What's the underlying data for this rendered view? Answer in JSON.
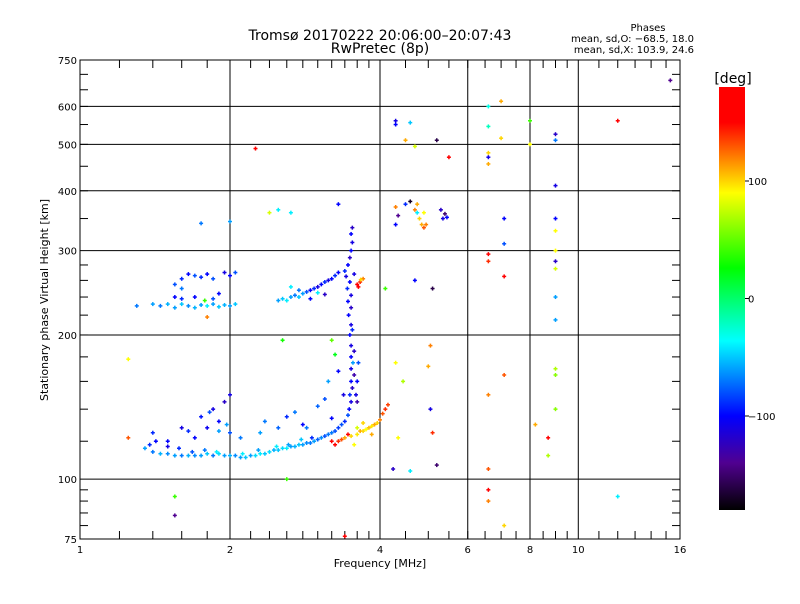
{
  "chart_data": {
    "type": "scatter",
    "title": "Tromsø 20170222 20:06:00–20:07:43",
    "subtitle": "RwPretec (8p)",
    "xlabel": "Frequency [MHz]",
    "ylabel": "Stationary phase Virtual Height [km]",
    "xscale": "log",
    "yscale": "log",
    "xlim": [
      1,
      16
    ],
    "ylim": [
      75,
      750
    ],
    "xticks": [
      1,
      2,
      4,
      6,
      8,
      10,
      16
    ],
    "yticks": [
      75,
      100,
      200,
      300,
      400,
      500,
      600,
      750
    ],
    "grid": true,
    "stats": {
      "title": "Phases",
      "line_o": "mean, sd,O: −68.5, 18.0",
      "line_x": "mean, sd,X: 103.9, 24.6"
    },
    "colorbar": {
      "label": "[deg]",
      "range": [
        -180,
        180
      ],
      "ticks": [
        100,
        0,
        -100
      ],
      "tick_labels": [
        "100",
        "0",
        "−100"
      ],
      "stops": [
        [
          -180,
          "#000000"
        ],
        [
          -140,
          "#500090"
        ],
        [
          -100,
          "#0000ff"
        ],
        [
          -36,
          "#00ffff"
        ],
        [
          26,
          "#00ff00"
        ],
        [
          90,
          "#ffff00"
        ],
        [
          150,
          "#ff0000"
        ],
        [
          180,
          "#ff0000"
        ]
      ]
    },
    "points_columns": [
      "frequency_mhz",
      "height_km",
      "phase_deg"
    ],
    "points": [
      [
        1.35,
        116,
        -60
      ],
      [
        1.38,
        118,
        -90
      ],
      [
        1.4,
        114,
        -70
      ],
      [
        1.45,
        113,
        -55
      ],
      [
        1.5,
        113,
        -65
      ],
      [
        1.55,
        112,
        -60
      ],
      [
        1.6,
        112,
        -70
      ],
      [
        1.65,
        112,
        -55
      ],
      [
        1.7,
        112,
        -65
      ],
      [
        1.75,
        112,
        -60
      ],
      [
        1.8,
        113,
        -50
      ],
      [
        1.85,
        112,
        -70
      ],
      [
        1.9,
        113,
        -45
      ],
      [
        1.95,
        112,
        -60
      ],
      [
        2.0,
        112,
        -55
      ],
      [
        2.05,
        112,
        -65
      ],
      [
        2.1,
        111,
        -60
      ],
      [
        2.15,
        111,
        -50
      ],
      [
        2.2,
        112,
        -60
      ],
      [
        2.25,
        112,
        -45
      ],
      [
        2.3,
        113,
        -40
      ],
      [
        2.35,
        113,
        -50
      ],
      [
        2.4,
        114,
        -45
      ],
      [
        2.45,
        115,
        -55
      ],
      [
        2.5,
        115,
        -50
      ],
      [
        2.55,
        116,
        -45
      ],
      [
        2.6,
        116,
        -40
      ],
      [
        2.65,
        117,
        -60
      ],
      [
        2.7,
        117,
        -55
      ],
      [
        2.75,
        118,
        -50
      ],
      [
        2.8,
        118,
        -60
      ],
      [
        2.85,
        119,
        -65
      ],
      [
        2.9,
        119,
        -70
      ],
      [
        2.95,
        120,
        -60
      ],
      [
        3.0,
        121,
        -75
      ],
      [
        3.05,
        122,
        -65
      ],
      [
        3.1,
        123,
        -80
      ],
      [
        3.15,
        124,
        -70
      ],
      [
        3.2,
        125,
        -70
      ],
      [
        3.25,
        126,
        -80
      ],
      [
        3.3,
        128,
        -85
      ],
      [
        3.35,
        130,
        -80
      ],
      [
        3.4,
        132,
        -90
      ],
      [
        3.45,
        136,
        -80
      ],
      [
        1.42,
        120,
        -100
      ],
      [
        1.5,
        117,
        -110
      ],
      [
        1.58,
        116,
        -90
      ],
      [
        1.68,
        114,
        -80
      ],
      [
        1.78,
        115,
        -70
      ],
      [
        1.88,
        114,
        -40
      ],
      [
        2.12,
        113,
        -40
      ],
      [
        2.28,
        115,
        -60
      ],
      [
        2.48,
        117,
        -40
      ],
      [
        2.62,
        118,
        -60
      ],
      [
        2.78,
        121,
        -50
      ],
      [
        2.92,
        122,
        -90
      ],
      [
        1.4,
        125,
        -90
      ],
      [
        1.5,
        120,
        -100
      ],
      [
        1.6,
        128,
        -110
      ],
      [
        1.65,
        126,
        -90
      ],
      [
        1.7,
        122,
        -100
      ],
      [
        1.75,
        135,
        -95
      ],
      [
        1.8,
        128,
        -105
      ],
      [
        1.82,
        138,
        -80
      ],
      [
        1.85,
        140,
        -110
      ],
      [
        1.9,
        132,
        -100
      ],
      [
        1.95,
        145,
        -120
      ],
      [
        2.0,
        125,
        -80
      ],
      [
        2.0,
        150,
        -110
      ],
      [
        1.9,
        126,
        -60
      ],
      [
        1.97,
        130,
        -60
      ],
      [
        2.1,
        122,
        -70
      ],
      [
        2.3,
        125,
        -60
      ],
      [
        2.35,
        132,
        -70
      ],
      [
        2.5,
        128,
        -75
      ],
      [
        2.6,
        135,
        -90
      ],
      [
        2.7,
        138,
        -70
      ],
      [
        2.8,
        130,
        -100
      ],
      [
        2.85,
        128,
        -70
      ],
      [
        3.0,
        142,
        -75
      ],
      [
        3.1,
        147,
        -80
      ],
      [
        3.2,
        134,
        -100
      ],
      [
        3.15,
        160,
        -60
      ],
      [
        3.3,
        168,
        -100
      ],
      [
        3.25,
        182,
        20
      ],
      [
        3.38,
        150,
        -110
      ],
      [
        3.47,
        140,
        -100
      ],
      [
        3.5,
        145,
        -110
      ],
      [
        3.48,
        150,
        -90
      ],
      [
        3.52,
        155,
        -120
      ],
      [
        3.5,
        160,
        -100
      ],
      [
        3.55,
        165,
        -130
      ],
      [
        3.5,
        170,
        -110
      ],
      [
        3.53,
        175,
        -60
      ],
      [
        3.5,
        180,
        -100
      ],
      [
        3.55,
        185,
        -120
      ],
      [
        3.5,
        190,
        -110
      ],
      [
        3.48,
        200,
        -100
      ],
      [
        3.52,
        205,
        -90
      ],
      [
        3.5,
        210,
        -110
      ],
      [
        3.46,
        220,
        -100
      ],
      [
        3.5,
        228,
        -120
      ],
      [
        3.45,
        235,
        -100
      ],
      [
        3.5,
        242,
        -110
      ],
      [
        3.44,
        250,
        -90
      ],
      [
        3.48,
        258,
        -100
      ],
      [
        3.42,
        265,
        -110
      ],
      [
        3.4,
        272,
        -90
      ],
      [
        3.45,
        280,
        -100
      ],
      [
        3.48,
        290,
        -120
      ],
      [
        3.5,
        300,
        -100
      ],
      [
        3.52,
        312,
        -110
      ],
      [
        3.5,
        325,
        -100
      ],
      [
        3.52,
        335,
        -120
      ],
      [
        3.6,
        160,
        -100
      ],
      [
        3.62,
        175,
        -80
      ],
      [
        3.58,
        150,
        -110
      ],
      [
        3.6,
        145,
        -130
      ],
      [
        1.4,
        232,
        -60
      ],
      [
        1.45,
        230,
        -70
      ],
      [
        1.5,
        232,
        -55
      ],
      [
        1.55,
        228,
        -60
      ],
      [
        1.6,
        232,
        -50
      ],
      [
        1.65,
        230,
        -65
      ],
      [
        1.7,
        228,
        -55
      ],
      [
        1.75,
        231,
        -60
      ],
      [
        1.8,
        230,
        -40
      ],
      [
        1.85,
        232,
        -60
      ],
      [
        1.9,
        229,
        -50
      ],
      [
        1.95,
        231,
        -55
      ],
      [
        2.0,
        230,
        -60
      ],
      [
        2.05,
        232,
        -50
      ],
      [
        1.55,
        240,
        -100
      ],
      [
        1.6,
        238,
        -90
      ],
      [
        1.7,
        240,
        -100
      ],
      [
        1.78,
        236,
        40
      ],
      [
        1.85,
        238,
        -80
      ],
      [
        1.9,
        244,
        -100
      ],
      [
        1.6,
        262,
        -90
      ],
      [
        1.65,
        268,
        -100
      ],
      [
        1.7,
        266,
        -80
      ],
      [
        1.75,
        264,
        -90
      ],
      [
        1.8,
        268,
        -100
      ],
      [
        1.85,
        262,
        -80
      ],
      [
        1.95,
        270,
        -110
      ],
      [
        2.0,
        266,
        -100
      ],
      [
        2.05,
        270,
        -80
      ],
      [
        1.55,
        255,
        -80
      ],
      [
        1.6,
        250,
        -70
      ],
      [
        2.5,
        236,
        -60
      ],
      [
        2.55,
        238,
        -50
      ],
      [
        2.6,
        236,
        -40
      ],
      [
        2.65,
        240,
        -60
      ],
      [
        2.7,
        242,
        -70
      ],
      [
        2.75,
        240,
        -50
      ],
      [
        2.8,
        244,
        -60
      ],
      [
        2.85,
        246,
        -80
      ],
      [
        2.9,
        248,
        -100
      ],
      [
        2.95,
        250,
        -90
      ],
      [
        3.0,
        252,
        -110
      ],
      [
        3.05,
        255,
        -100
      ],
      [
        3.1,
        258,
        -90
      ],
      [
        3.15,
        260,
        -110
      ],
      [
        3.2,
        262,
        -100
      ],
      [
        3.25,
        266,
        -90
      ],
      [
        3.3,
        270,
        -100
      ],
      [
        2.65,
        252,
        -40
      ],
      [
        2.75,
        248,
        -70
      ],
      [
        2.9,
        238,
        -100
      ],
      [
        3.0,
        245,
        -40
      ],
      [
        3.1,
        243,
        -120
      ],
      [
        3.6,
        255,
        150
      ],
      [
        3.65,
        258,
        140
      ],
      [
        3.7,
        262,
        120
      ],
      [
        3.66,
        261,
        100
      ],
      [
        3.62,
        252,
        160
      ],
      [
        3.55,
        268,
        -110
      ],
      [
        3.2,
        120,
        150
      ],
      [
        3.25,
        118,
        160
      ],
      [
        3.3,
        120,
        140
      ],
      [
        3.35,
        121,
        130
      ],
      [
        3.4,
        122,
        110
      ],
      [
        3.45,
        124,
        150
      ],
      [
        3.5,
        123,
        100
      ],
      [
        3.55,
        118,
        90
      ],
      [
        3.6,
        124,
        95
      ],
      [
        3.65,
        126,
        110
      ],
      [
        3.7,
        126,
        100
      ],
      [
        3.75,
        127,
        90
      ],
      [
        3.8,
        128,
        105
      ],
      [
        3.85,
        129,
        95
      ],
      [
        3.9,
        130,
        110
      ],
      [
        3.95,
        131,
        100
      ],
      [
        4.0,
        133,
        120
      ],
      [
        4.05,
        137,
        130
      ],
      [
        4.1,
        140,
        140
      ],
      [
        4.15,
        143,
        135
      ],
      [
        3.6,
        128,
        80
      ],
      [
        3.7,
        131,
        100
      ],
      [
        3.85,
        124,
        110
      ],
      [
        4.3,
        370,
        120
      ],
      [
        4.35,
        355,
        -140
      ],
      [
        4.3,
        340,
        -100
      ],
      [
        4.5,
        375,
        -90
      ],
      [
        4.6,
        380,
        -170
      ],
      [
        4.7,
        365,
        120
      ],
      [
        4.75,
        360,
        -40
      ],
      [
        4.8,
        350,
        100
      ],
      [
        4.85,
        340,
        110
      ],
      [
        4.9,
        335,
        130
      ],
      [
        4.95,
        340,
        120
      ],
      [
        4.75,
        375,
        110
      ],
      [
        4.9,
        360,
        90
      ],
      [
        5.3,
        365,
        -120
      ],
      [
        5.4,
        358,
        -150
      ],
      [
        5.35,
        350,
        -110
      ],
      [
        5.45,
        352,
        -100
      ],
      [
        4.3,
        560,
        -110
      ],
      [
        4.3,
        550,
        -100
      ],
      [
        4.6,
        555,
        -50
      ],
      [
        4.5,
        510,
        110
      ],
      [
        4.7,
        495,
        80
      ],
      [
        5.2,
        510,
        -160
      ],
      [
        5.5,
        470,
        150
      ],
      [
        6.6,
        545,
        -20
      ],
      [
        6.6,
        480,
        100
      ],
      [
        6.6,
        470,
        -110
      ],
      [
        6.6,
        455,
        110
      ],
      [
        7.0,
        615,
        110
      ],
      [
        6.6,
        600,
        -30
      ],
      [
        7.0,
        515,
        100
      ],
      [
        8.0,
        560,
        40
      ],
      [
        8.0,
        500,
        90
      ],
      [
        9.0,
        525,
        -120
      ],
      [
        9.0,
        510,
        -70
      ],
      [
        9.0,
        410,
        -110
      ],
      [
        12.0,
        560,
        160
      ],
      [
        15.3,
        680,
        -140
      ],
      [
        9.0,
        350,
        -100
      ],
      [
        9.0,
        330,
        90
      ],
      [
        9.0,
        300,
        90
      ],
      [
        9.0,
        285,
        -120
      ],
      [
        9.0,
        275,
        80
      ],
      [
        9.0,
        240,
        -60
      ],
      [
        9.0,
        215,
        -60
      ],
      [
        9.0,
        170,
        70
      ],
      [
        9.0,
        165,
        60
      ],
      [
        9.0,
        140,
        60
      ],
      [
        6.6,
        295,
        160
      ],
      [
        6.6,
        285,
        140
      ],
      [
        6.6,
        150,
        120
      ],
      [
        6.6,
        105,
        130
      ],
      [
        6.6,
        95,
        150
      ],
      [
        6.6,
        90,
        120
      ],
      [
        7.1,
        350,
        -100
      ],
      [
        7.1,
        310,
        -80
      ],
      [
        7.1,
        265,
        160
      ],
      [
        7.1,
        165,
        130
      ],
      [
        7.1,
        80,
        100
      ],
      [
        8.2,
        130,
        110
      ],
      [
        8.7,
        122,
        160
      ],
      [
        8.7,
        112,
        70
      ],
      [
        12.0,
        92,
        -40
      ],
      [
        1.25,
        178,
        90
      ],
      [
        1.25,
        122,
        130
      ],
      [
        1.55,
        92,
        40
      ],
      [
        1.55,
        84,
        -140
      ],
      [
        1.8,
        218,
        120
      ],
      [
        2.25,
        490,
        150
      ],
      [
        2.55,
        195,
        30
      ],
      [
        2.0,
        345,
        -60
      ],
      [
        1.75,
        342,
        -70
      ],
      [
        2.4,
        360,
        80
      ],
      [
        2.5,
        365,
        -40
      ],
      [
        2.65,
        360,
        -40
      ],
      [
        3.3,
        375,
        -100
      ],
      [
        3.2,
        195,
        50
      ],
      [
        3.4,
        76,
        150
      ],
      [
        4.1,
        250,
        40
      ],
      [
        4.25,
        105,
        -120
      ],
      [
        4.35,
        122,
        90
      ],
      [
        4.6,
        104,
        -40
      ],
      [
        4.7,
        260,
        -100
      ],
      [
        5.1,
        250,
        -160
      ],
      [
        5.05,
        190,
        120
      ],
      [
        5.0,
        172,
        110
      ],
      [
        5.1,
        125,
        140
      ],
      [
        5.05,
        140,
        -110
      ],
      [
        5.2,
        107,
        -150
      ],
      [
        4.3,
        175,
        90
      ],
      [
        4.45,
        160,
        70
      ],
      [
        1.3,
        230,
        -70
      ],
      [
        2.6,
        100,
        40
      ]
    ]
  }
}
